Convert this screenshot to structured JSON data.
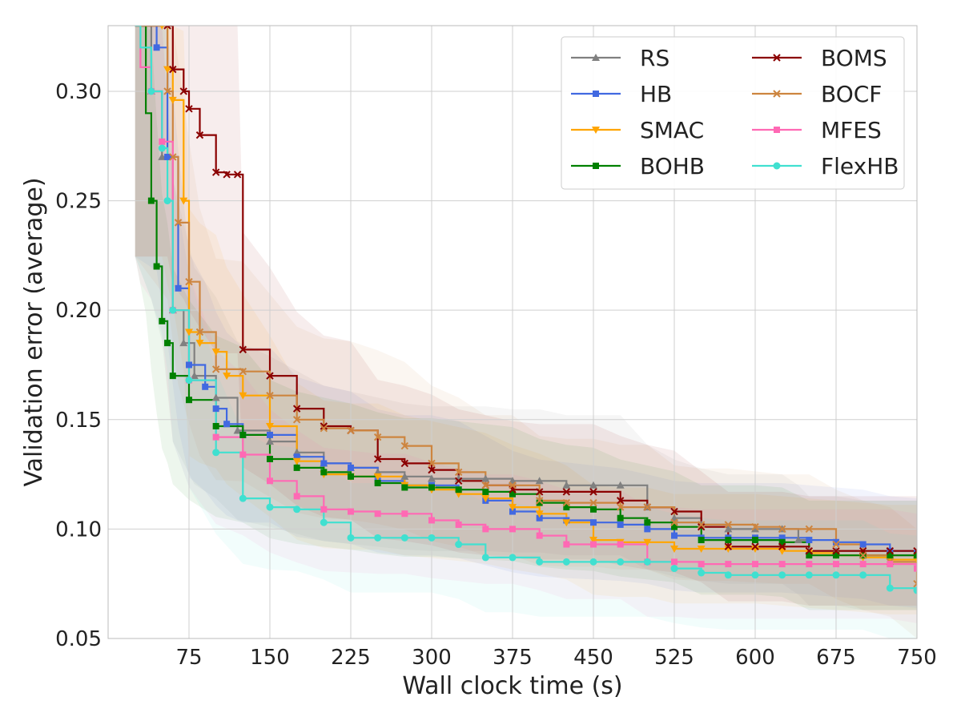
{
  "chart_data": {
    "type": "line",
    "title": "",
    "xlabel": "Wall clock time (s)",
    "ylabel": "Validation error (average)",
    "xlim": [
      0,
      750
    ],
    "ylim": [
      0.05,
      0.33
    ],
    "xticks": [
      75,
      150,
      225,
      300,
      375,
      450,
      525,
      600,
      675,
      750
    ],
    "yticks": [
      0.05,
      0.1,
      0.15,
      0.2,
      0.25,
      0.3
    ],
    "xtick_labels": [
      "75",
      "150",
      "225",
      "300",
      "375",
      "450",
      "525",
      "600",
      "675",
      "750"
    ],
    "ytick_labels": [
      "0.05",
      "0.10",
      "0.15",
      "0.20",
      "0.25",
      "0.30"
    ],
    "grid": true,
    "legend_position": "top-right",
    "series": [
      {
        "name": "RS",
        "color": "#808080",
        "marker": "triangle",
        "x": [
          25,
          40,
          50,
          60,
          70,
          80,
          100,
          120,
          150,
          175,
          200,
          225,
          250,
          275,
          300,
          325,
          350,
          375,
          400,
          425,
          450,
          475,
          500,
          525,
          550,
          575,
          600,
          625,
          640,
          650,
          675,
          700,
          725,
          750
        ],
        "y": [
          0.33,
          0.3,
          0.27,
          0.2,
          0.185,
          0.17,
          0.16,
          0.145,
          0.14,
          0.135,
          0.13,
          0.128,
          0.126,
          0.124,
          0.123,
          0.123,
          0.123,
          0.122,
          0.122,
          0.12,
          0.12,
          0.12,
          0.11,
          0.105,
          0.102,
          0.1,
          0.1,
          0.1,
          0.095,
          0.09,
          0.09,
          0.088,
          0.088,
          0.088
        ]
      },
      {
        "name": "HB",
        "color": "#4169e1",
        "marker": "square",
        "x": [
          25,
          45,
          55,
          65,
          75,
          90,
          100,
          110,
          125,
          150,
          175,
          200,
          225,
          250,
          275,
          300,
          325,
          350,
          375,
          400,
          425,
          450,
          475,
          500,
          525,
          550,
          575,
          600,
          625,
          650,
          675,
          700,
          725,
          750
        ],
        "y": [
          0.33,
          0.32,
          0.27,
          0.21,
          0.175,
          0.165,
          0.155,
          0.148,
          0.143,
          0.143,
          0.133,
          0.13,
          0.128,
          0.122,
          0.12,
          0.12,
          0.118,
          0.113,
          0.108,
          0.105,
          0.104,
          0.103,
          0.102,
          0.1,
          0.097,
          0.096,
          0.096,
          0.096,
          0.096,
          0.095,
          0.094,
          0.093,
          0.09,
          0.089
        ]
      },
      {
        "name": "SMAC",
        "color": "#ffa500",
        "marker": "triangle-down",
        "x": [
          25,
          50,
          55,
          60,
          70,
          75,
          85,
          100,
          110,
          125,
          150,
          175,
          200,
          225,
          250,
          275,
          300,
          325,
          350,
          375,
          400,
          425,
          450,
          475,
          500,
          525,
          550,
          575,
          600,
          625,
          650,
          675,
          700,
          725,
          750
        ],
        "y": [
          0.33,
          0.33,
          0.31,
          0.296,
          0.25,
          0.19,
          0.185,
          0.181,
          0.17,
          0.161,
          0.147,
          0.131,
          0.125,
          0.124,
          0.124,
          0.12,
          0.118,
          0.116,
          0.114,
          0.11,
          0.107,
          0.103,
          0.095,
          0.094,
          0.094,
          0.091,
          0.091,
          0.091,
          0.091,
          0.09,
          0.089,
          0.088,
          0.087,
          0.086,
          0.086
        ]
      },
      {
        "name": "BOHB",
        "color": "#008000",
        "marker": "square",
        "x": [
          25,
          35,
          40,
          45,
          50,
          55,
          60,
          75,
          100,
          125,
          150,
          175,
          200,
          225,
          250,
          275,
          300,
          325,
          350,
          375,
          400,
          425,
          450,
          475,
          500,
          525,
          550,
          575,
          600,
          625,
          650,
          675,
          700,
          725,
          750
        ],
        "y": [
          0.33,
          0.29,
          0.25,
          0.22,
          0.195,
          0.185,
          0.17,
          0.159,
          0.147,
          0.143,
          0.132,
          0.128,
          0.126,
          0.124,
          0.121,
          0.119,
          0.119,
          0.118,
          0.117,
          0.116,
          0.112,
          0.11,
          0.109,
          0.105,
          0.103,
          0.101,
          0.095,
          0.095,
          0.095,
          0.094,
          0.088,
          0.088,
          0.088,
          0.088,
          0.088
        ]
      },
      {
        "name": "BOMS",
        "color": "#8b0000",
        "marker": "x",
        "x": [
          25,
          55,
          60,
          70,
          75,
          85,
          100,
          110,
          120,
          125,
          150,
          175,
          200,
          225,
          250,
          275,
          300,
          325,
          350,
          375,
          400,
          425,
          450,
          475,
          500,
          525,
          550,
          575,
          600,
          625,
          650,
          675,
          700,
          725,
          750
        ],
        "y": [
          0.33,
          0.33,
          0.31,
          0.3,
          0.292,
          0.28,
          0.263,
          0.262,
          0.262,
          0.182,
          0.17,
          0.155,
          0.147,
          0.145,
          0.132,
          0.13,
          0.127,
          0.122,
          0.12,
          0.118,
          0.117,
          0.117,
          0.117,
          0.113,
          0.11,
          0.108,
          0.101,
          0.092,
          0.092,
          0.092,
          0.09,
          0.09,
          0.09,
          0.09,
          0.09
        ]
      },
      {
        "name": "BOCF",
        "color": "#cd853f",
        "marker": "x",
        "x": [
          25,
          55,
          60,
          65,
          75,
          85,
          100,
          125,
          150,
          175,
          200,
          225,
          250,
          275,
          300,
          325,
          350,
          375,
          400,
          425,
          450,
          475,
          500,
          525,
          550,
          575,
          600,
          625,
          650,
          675,
          700,
          725,
          750
        ],
        "y": [
          0.33,
          0.3,
          0.27,
          0.24,
          0.213,
          0.19,
          0.173,
          0.172,
          0.161,
          0.15,
          0.146,
          0.145,
          0.142,
          0.138,
          0.13,
          0.126,
          0.12,
          0.12,
          0.113,
          0.112,
          0.112,
          0.11,
          0.11,
          0.103,
          0.102,
          0.102,
          0.101,
          0.1,
          0.1,
          0.093,
          0.088,
          0.085,
          0.075
        ]
      },
      {
        "name": "MFES",
        "color": "#ff69b4",
        "marker": "square",
        "x": [
          25,
          30,
          40,
          50,
          60,
          75,
          100,
          125,
          150,
          175,
          200,
          225,
          250,
          275,
          300,
          325,
          350,
          375,
          400,
          425,
          450,
          475,
          500,
          525,
          550,
          575,
          600,
          625,
          650,
          675,
          700,
          725,
          750
        ],
        "y": [
          0.33,
          0.311,
          0.3,
          0.277,
          0.2,
          0.168,
          0.142,
          0.134,
          0.122,
          0.115,
          0.109,
          0.108,
          0.107,
          0.107,
          0.104,
          0.102,
          0.1,
          0.1,
          0.097,
          0.093,
          0.093,
          0.093,
          0.085,
          0.085,
          0.084,
          0.084,
          0.084,
          0.084,
          0.084,
          0.084,
          0.084,
          0.084,
          0.082
        ]
      },
      {
        "name": "FlexHB",
        "color": "#40e0d0",
        "marker": "circle",
        "x": [
          25,
          30,
          40,
          50,
          55,
          60,
          75,
          100,
          125,
          150,
          175,
          200,
          225,
          250,
          275,
          300,
          325,
          350,
          375,
          400,
          425,
          450,
          475,
          500,
          525,
          550,
          575,
          600,
          625,
          650,
          675,
          700,
          725,
          750
        ],
        "y": [
          0.33,
          0.32,
          0.3,
          0.274,
          0.25,
          0.2,
          0.168,
          0.135,
          0.114,
          0.11,
          0.109,
          0.103,
          0.096,
          0.096,
          0.096,
          0.096,
          0.093,
          0.087,
          0.087,
          0.085,
          0.085,
          0.085,
          0.085,
          0.085,
          0.082,
          0.08,
          0.079,
          0.079,
          0.079,
          0.079,
          0.079,
          0.079,
          0.073,
          0.072
        ]
      }
    ]
  }
}
